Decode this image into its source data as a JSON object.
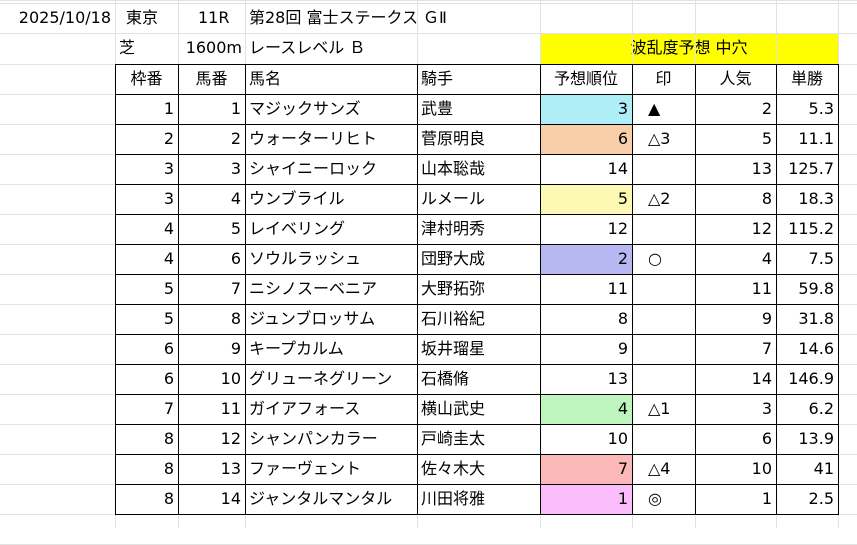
{
  "header": {
    "date": "2025/10/18",
    "venue": "東京",
    "race_no": "11R",
    "race_name": "第28回 富士ステークス ＧⅡ",
    "surface": "芝",
    "distance": "1600m",
    "race_level": "レースレベル Ｂ",
    "upset_label": "波乱度予想 中穴"
  },
  "columns": [
    "枠番",
    "馬番",
    "馬名",
    "騎手",
    "予想順位",
    "印",
    "人気",
    "単勝"
  ],
  "rows": [
    {
      "waku": "1",
      "umaban": "1",
      "horse": "マジックサンズ",
      "jockey": "武豊",
      "rank": "3",
      "mark": "▲",
      "ninki": "2",
      "odds": "5.3",
      "color": "#aeeef7"
    },
    {
      "waku": "2",
      "umaban": "2",
      "horse": "ウォーターリヒト",
      "jockey": "菅原明良",
      "rank": "6",
      "mark": "△3",
      "ninki": "5",
      "odds": "11.1",
      "color": "#f8cfa8"
    },
    {
      "waku": "3",
      "umaban": "3",
      "horse": "シャイニーロック",
      "jockey": "山本聡哉",
      "rank": "14",
      "mark": "",
      "ninki": "13",
      "odds": "125.7",
      "color": ""
    },
    {
      "waku": "3",
      "umaban": "4",
      "horse": "ウンブライル",
      "jockey": "ルメール",
      "rank": "5",
      "mark": "△2",
      "ninki": "8",
      "odds": "18.3",
      "color": "#fdf9b5"
    },
    {
      "waku": "4",
      "umaban": "5",
      "horse": "レイベリング",
      "jockey": "津村明秀",
      "rank": "12",
      "mark": "",
      "ninki": "12",
      "odds": "115.2",
      "color": ""
    },
    {
      "waku": "4",
      "umaban": "6",
      "horse": "ソウルラッシュ",
      "jockey": "団野大成",
      "rank": "2",
      "mark": "○",
      "ninki": "4",
      "odds": "7.5",
      "color": "#b7b7f2"
    },
    {
      "waku": "5",
      "umaban": "7",
      "horse": "ニシノスーベニア",
      "jockey": "大野拓弥",
      "rank": "11",
      "mark": "",
      "ninki": "11",
      "odds": "59.8",
      "color": ""
    },
    {
      "waku": "5",
      "umaban": "8",
      "horse": "ジュンブロッサム",
      "jockey": "石川裕紀",
      "rank": "8",
      "mark": "",
      "ninki": "9",
      "odds": "31.8",
      "color": ""
    },
    {
      "waku": "6",
      "umaban": "9",
      "horse": "キープカルム",
      "jockey": "坂井瑠星",
      "rank": "9",
      "mark": "",
      "ninki": "7",
      "odds": "14.6",
      "color": ""
    },
    {
      "waku": "6",
      "umaban": "10",
      "horse": "グリューネグリーン",
      "jockey": "石橋脩",
      "rank": "13",
      "mark": "",
      "ninki": "14",
      "odds": "146.9",
      "color": ""
    },
    {
      "waku": "7",
      "umaban": "11",
      "horse": "ガイアフォース",
      "jockey": "横山武史",
      "rank": "4",
      "mark": "△1",
      "ninki": "3",
      "odds": "6.2",
      "color": "#bff5bf"
    },
    {
      "waku": "8",
      "umaban": "12",
      "horse": "シャンパンカラー",
      "jockey": "戸崎圭太",
      "rank": "10",
      "mark": "",
      "ninki": "6",
      "odds": "13.9",
      "color": ""
    },
    {
      "waku": "8",
      "umaban": "13",
      "horse": "ファーヴェント",
      "jockey": "佐々木大",
      "rank": "7",
      "mark": "△4",
      "ninki": "10",
      "odds": "41",
      "color": "#fbb8b8"
    },
    {
      "waku": "8",
      "umaban": "14",
      "horse": "ジャンタルマンタル",
      "jockey": "川田将雅",
      "rank": "1",
      "mark": "◎",
      "ninki": "1",
      "odds": "2.5",
      "color": "#fbbdfb"
    }
  ],
  "colors": {
    "highlight_yellow": "#ffff00",
    "grid": "#e2e2e2",
    "border": "#000000"
  }
}
